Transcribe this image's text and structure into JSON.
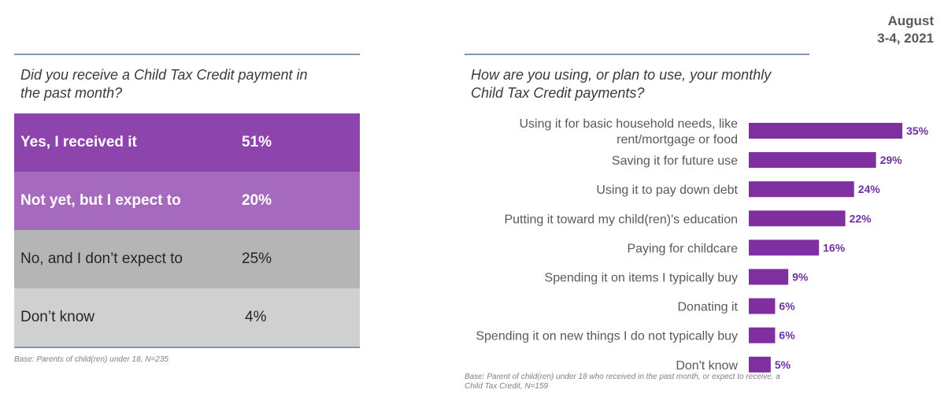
{
  "date": {
    "line1": "August",
    "line2": "3-4, 2021"
  },
  "left": {
    "question_line1": "Did you receive a Child Tax Credit payment in",
    "question_line2": "the past month?",
    "rows": [
      {
        "label": "Yes, I received it",
        "value": "51%"
      },
      {
        "label": "Not yet, but I expect to",
        "value": "20%"
      },
      {
        "label": "No, and I don’t expect to",
        "value": "25%"
      },
      {
        "label": "Don’t know",
        "value": "4%"
      }
    ],
    "base": "Base: Parents of child(ren) under 18, N=235"
  },
  "right": {
    "question_line1": "How are you using, or plan to use, your monthly",
    "question_line2": "Child Tax Credit payments?",
    "base_line1": "Base: Parent of child(ren) under 18 who received in the past month, or expect to receive, a",
    "base_line2": "Child Tax Credit, N=159"
  },
  "chart_data": [
    {
      "type": "table",
      "title": "Did you receive a Child Tax Credit payment in the past month?",
      "categories": [
        "Yes, I received it",
        "Not yet, but I expect to",
        "No, and I don’t expect to",
        "Don’t know"
      ],
      "values": [
        51,
        20,
        25,
        4
      ],
      "colors": [
        "#8e44ad",
        "#a569bd",
        "#b5b5b5",
        "#d0d0d0"
      ]
    },
    {
      "type": "bar",
      "orientation": "horizontal",
      "title": "How are you using, or plan to use, your monthly Child Tax Credit payments?",
      "categories": [
        [
          "Using it for basic household needs, like",
          "rent/mortgage or food"
        ],
        [
          "Saving it for future use"
        ],
        [
          "Using it to pay down debt"
        ],
        [
          "Putting it toward my child(ren)'s education"
        ],
        [
          "Paying for childcare"
        ],
        [
          "Spending it on items I typically buy"
        ],
        [
          "Donating it"
        ],
        [
          "Spending it on new things I do not typically buy"
        ],
        [
          "Don't know"
        ]
      ],
      "values": [
        35,
        29,
        24,
        22,
        16,
        9,
        6,
        6,
        5
      ],
      "value_labels": [
        "35%",
        "29%",
        "24%",
        "22%",
        "16%",
        "9%",
        "6%",
        "6%",
        "5%"
      ],
      "xlim": [
        0,
        35
      ],
      "grid": false,
      "bar_color": "#7f2f9f"
    }
  ]
}
